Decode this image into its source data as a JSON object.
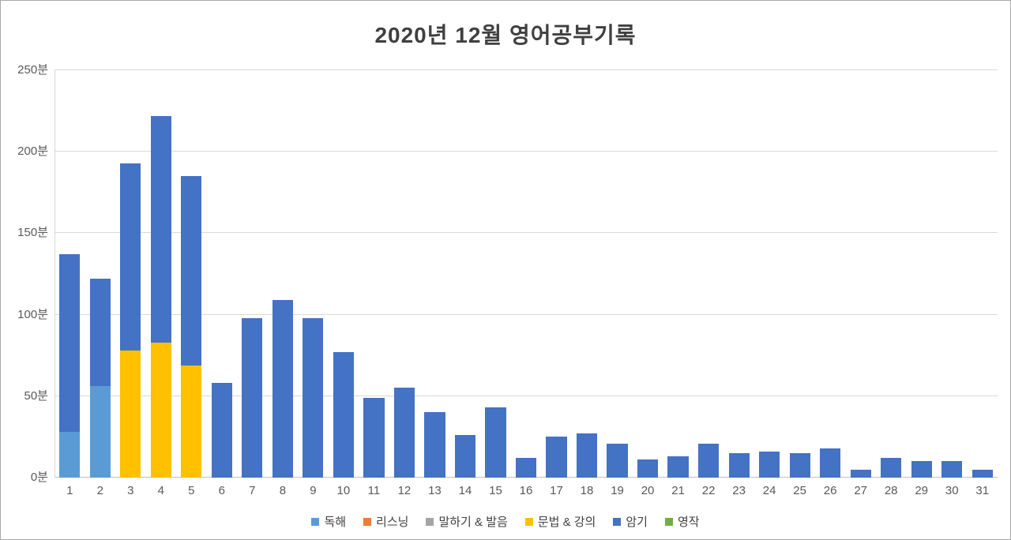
{
  "title": "2020년 12월 영어공부기록",
  "chart_data": {
    "type": "bar",
    "stacked": true,
    "title": "2020년 12월 영어공부기록",
    "xlabel": "",
    "ylabel": "분",
    "ylim": [
      0,
      250
    ],
    "y_tick_labels": [
      "0분",
      "50분",
      "100분",
      "150분",
      "200분",
      "250분"
    ],
    "grid": true,
    "legend_position": "bottom",
    "categories": [
      "1",
      "2",
      "3",
      "4",
      "5",
      "6",
      "7",
      "8",
      "9",
      "10",
      "11",
      "12",
      "13",
      "14",
      "15",
      "16",
      "17",
      "18",
      "19",
      "20",
      "21",
      "22",
      "23",
      "24",
      "25",
      "26",
      "27",
      "28",
      "29",
      "30",
      "31"
    ],
    "series": [
      {
        "name": "독해",
        "key": "reading",
        "color": "#5B9BD5",
        "values": [
          28,
          56,
          0,
          0,
          0,
          0,
          0,
          0,
          0,
          0,
          0,
          0,
          0,
          0,
          0,
          0,
          0,
          0,
          0,
          0,
          0,
          0,
          0,
          0,
          0,
          0,
          0,
          0,
          0,
          0,
          0
        ]
      },
      {
        "name": "리스닝",
        "key": "listening",
        "color": "#ED7D31",
        "values": [
          0,
          0,
          0,
          0,
          0,
          0,
          0,
          0,
          0,
          0,
          0,
          0,
          0,
          0,
          0,
          0,
          0,
          0,
          0,
          0,
          0,
          0,
          0,
          0,
          0,
          0,
          0,
          0,
          0,
          0,
          0
        ]
      },
      {
        "name": "말하기 & 발음",
        "key": "speaking-pronunciation",
        "color": "#A5A5A5",
        "values": [
          0,
          0,
          0,
          0,
          0,
          0,
          0,
          0,
          0,
          0,
          0,
          0,
          0,
          0,
          0,
          0,
          0,
          0,
          0,
          0,
          0,
          0,
          0,
          0,
          0,
          0,
          0,
          0,
          0,
          0,
          0
        ]
      },
      {
        "name": "문법 & 강의",
        "key": "grammar-lecture",
        "color": "#FFC000",
        "values": [
          0,
          0,
          78,
          83,
          69,
          0,
          0,
          0,
          0,
          0,
          0,
          0,
          0,
          0,
          0,
          0,
          0,
          0,
          0,
          0,
          0,
          0,
          0,
          0,
          0,
          0,
          0,
          0,
          0,
          0,
          0
        ]
      },
      {
        "name": "암기",
        "key": "memorization",
        "color": "#4472C4",
        "values": [
          109,
          66,
          115,
          139,
          116,
          58,
          98,
          109,
          98,
          77,
          49,
          55,
          40,
          26,
          43,
          12,
          25,
          27,
          21,
          11,
          13,
          21,
          15,
          16,
          15,
          18,
          5,
          12,
          10,
          10,
          5
        ]
      },
      {
        "name": "영작",
        "key": "writing",
        "color": "#70AD47",
        "values": [
          0,
          0,
          0,
          0,
          0,
          0,
          0,
          0,
          0,
          0,
          0,
          0,
          0,
          0,
          0,
          0,
          0,
          0,
          0,
          0,
          0,
          0,
          0,
          0,
          0,
          0,
          0,
          0,
          0,
          0,
          0
        ]
      }
    ]
  },
  "style": {
    "gridline_color": "#D9D9D9",
    "baseline_color": "#BFBFBF",
    "tick_label_color": "#595959",
    "title_color": "#404040",
    "legend_label_color": "#404040"
  }
}
